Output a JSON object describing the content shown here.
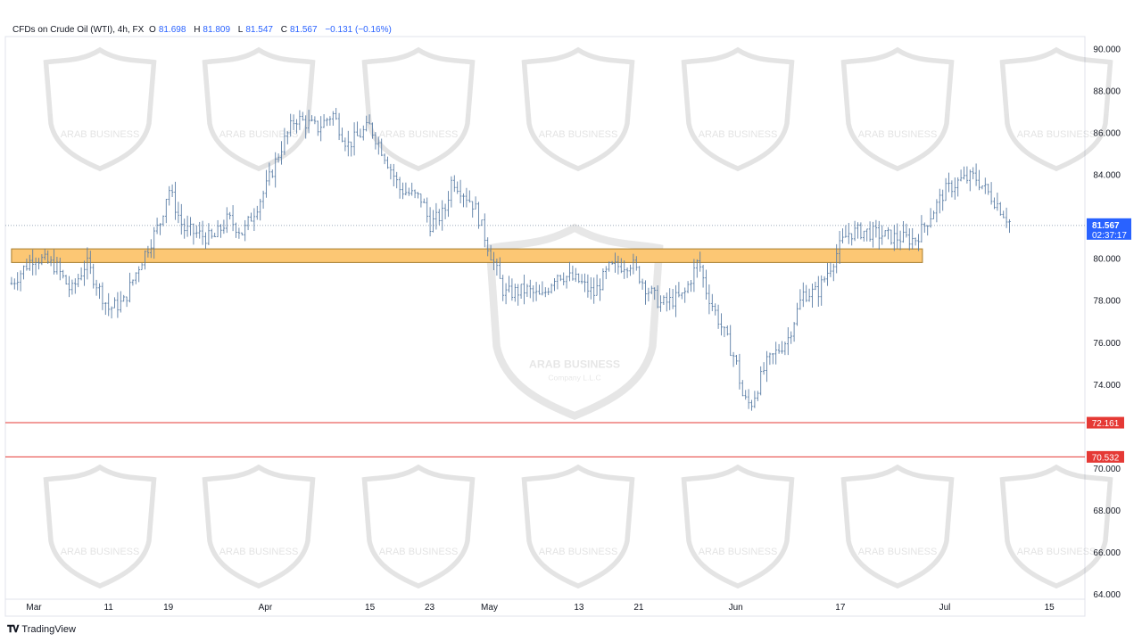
{
  "header": {
    "instrument": "CFDs on Crude Oil (WTI), 4h, FX",
    "open_label": "O",
    "open": "81.698",
    "high_label": "H",
    "high": "81.809",
    "low_label": "L",
    "low": "81.547",
    "close_label": "C",
    "close": "81.567",
    "change": "−0.131 (−0.16%)"
  },
  "footer": {
    "brand": "TradingView"
  },
  "watermark": {
    "name": "ARAB BUSINESS",
    "sub": "Company L.L.C"
  },
  "colors": {
    "candle": "#5b7ea6",
    "zone_fill": "#fcc774",
    "zone_border": "#a67c2e",
    "support_line": "#e53935",
    "price_badge": "#2962ff",
    "level_badge": "#e53935"
  },
  "chart_data": {
    "type": "candlestick",
    "title": "CFDs on Crude Oil (WTI), 4h, FX",
    "ylim": [
      64,
      90.5
    ],
    "y_ticks": [
      "64.000",
      "66.000",
      "68.000",
      "70.000",
      "72.000",
      "74.000",
      "76.000",
      "78.000",
      "80.000",
      "82.000",
      "84.000",
      "86.000",
      "88.000",
      "90.000"
    ],
    "x_ticks": [
      {
        "label": "Mar",
        "date": "2024-03-01"
      },
      {
        "label": "11",
        "date": "2024-03-11"
      },
      {
        "label": "19",
        "date": "2024-03-19"
      },
      {
        "label": "Apr",
        "date": "2024-04-01"
      },
      {
        "label": "15",
        "date": "2024-04-15"
      },
      {
        "label": "23",
        "date": "2024-04-23"
      },
      {
        "label": "May",
        "date": "2024-05-01"
      },
      {
        "label": "13",
        "date": "2024-05-13"
      },
      {
        "label": "21",
        "date": "2024-05-21"
      },
      {
        "label": "Jun",
        "date": "2024-06-03"
      },
      {
        "label": "17",
        "date": "2024-06-17"
      },
      {
        "label": "Jul",
        "date": "2024-07-01"
      },
      {
        "label": "15",
        "date": "2024-07-15"
      }
    ],
    "price_path": [
      [
        "2024-02-27",
        78.8
      ],
      [
        "2024-03-01",
        80.1
      ],
      [
        "2024-03-04",
        79.6
      ],
      [
        "2024-03-06",
        78.4
      ],
      [
        "2024-03-08",
        79.8
      ],
      [
        "2024-03-11",
        77.6
      ],
      [
        "2024-03-13",
        77.9
      ],
      [
        "2024-03-15",
        79.6
      ],
      [
        "2024-03-18",
        81.8
      ],
      [
        "2024-03-19",
        83.4
      ],
      [
        "2024-03-21",
        81.4
      ],
      [
        "2024-03-25",
        80.9
      ],
      [
        "2024-03-27",
        81.9
      ],
      [
        "2024-03-29",
        81.2
      ],
      [
        "2024-04-01",
        83.3
      ],
      [
        "2024-04-03",
        85.2
      ],
      [
        "2024-04-05",
        86.7
      ],
      [
        "2024-04-08",
        86.2
      ],
      [
        "2024-04-10",
        86.9
      ],
      [
        "2024-04-12",
        85.4
      ],
      [
        "2024-04-15",
        86.3
      ],
      [
        "2024-04-17",
        84.9
      ],
      [
        "2024-04-19",
        83.3
      ],
      [
        "2024-04-22",
        82.8
      ],
      [
        "2024-04-23",
        81.6
      ],
      [
        "2024-04-25",
        82.2
      ],
      [
        "2024-04-26",
        83.8
      ],
      [
        "2024-04-29",
        82.5
      ],
      [
        "2024-05-01",
        80.4
      ],
      [
        "2024-05-03",
        78.3
      ],
      [
        "2024-05-06",
        78.5
      ],
      [
        "2024-05-08",
        78.1
      ],
      [
        "2024-05-10",
        79.3
      ],
      [
        "2024-05-13",
        78.9
      ],
      [
        "2024-05-15",
        78.3
      ],
      [
        "2024-05-17",
        79.5
      ],
      [
        "2024-05-20",
        79.8
      ],
      [
        "2024-05-22",
        78.6
      ],
      [
        "2024-05-24",
        77.8
      ],
      [
        "2024-05-27",
        78.2
      ],
      [
        "2024-05-29",
        79.9
      ],
      [
        "2024-05-30",
        78.5
      ],
      [
        "2024-06-03",
        75.1
      ],
      [
        "2024-06-04",
        73.3
      ],
      [
        "2024-06-05",
        73.0
      ],
      [
        "2024-06-07",
        74.9
      ],
      [
        "2024-06-10",
        76.2
      ],
      [
        "2024-06-12",
        78.3
      ],
      [
        "2024-06-14",
        78.4
      ],
      [
        "2024-06-17",
        80.6
      ],
      [
        "2024-06-18",
        81.2
      ],
      [
        "2024-06-20",
        81.3
      ],
      [
        "2024-06-24",
        81.0
      ],
      [
        "2024-06-27",
        80.9
      ],
      [
        "2024-06-28",
        81.4
      ],
      [
        "2024-07-01",
        83.2
      ],
      [
        "2024-07-03",
        83.7
      ],
      [
        "2024-07-05",
        83.9
      ],
      [
        "2024-07-08",
        82.6
      ],
      [
        "2024-07-10",
        81.567
      ]
    ],
    "zone": {
      "low": 79.8,
      "high": 80.45,
      "start": "2024-02-27",
      "end": "2024-06-28"
    },
    "support_levels": [
      "72.161",
      "70.532"
    ],
    "last_price": "81.567",
    "countdown": "02:37:17",
    "grid": false,
    "xlabel": "",
    "ylabel": ""
  }
}
